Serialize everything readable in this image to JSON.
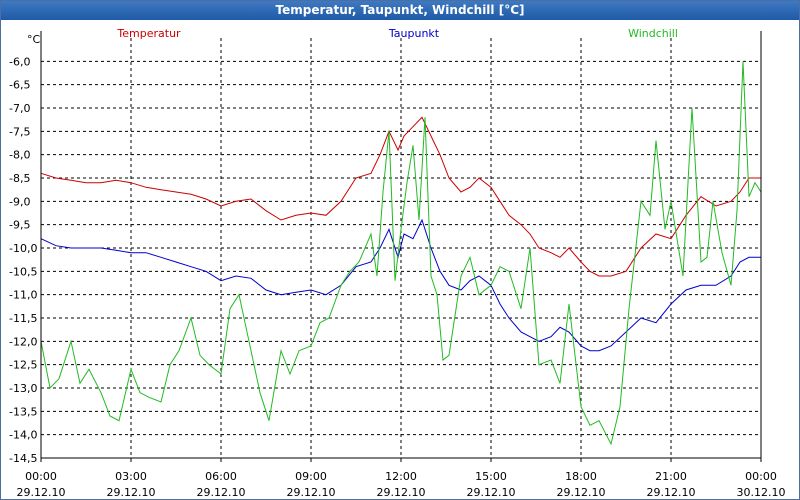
{
  "window": {
    "title": "Temperatur, Taupunkt, Windchill [°C]"
  },
  "colors": {
    "temperature": "#cc0000",
    "dewpoint": "#0000cc",
    "windchill": "#22bb22",
    "grid": "#000000",
    "axis": "#000000"
  },
  "chart_data": {
    "type": "line",
    "title": "Temperatur, Taupunkt, Windchill [°C]",
    "ylabel": "°C",
    "xlabel": "",
    "ylim": [
      -14.5,
      -5.5
    ],
    "xlim": [
      0,
      24
    ],
    "grid": true,
    "legend_position": "top",
    "yticks": [
      -14.5,
      -14.0,
      -13.5,
      -13.0,
      -12.5,
      -12.0,
      -11.5,
      -11.0,
      -10.5,
      -10.0,
      -9.5,
      -9.0,
      -8.5,
      -8.0,
      -7.5,
      -7.0,
      -6.5,
      -6.0
    ],
    "ytick_labels": [
      "-14,5",
      "-14,0",
      "-13,5",
      "-13,0",
      "-12,5",
      "-12,0",
      "-11,5",
      "-11,0",
      "-10,5",
      "-10,0",
      "-9,5",
      "-9,0",
      "-8,5",
      "-8,0",
      "-7,5",
      "-7,0",
      "-6,5",
      "-6,0"
    ],
    "xticks": [
      {
        "x": 0,
        "time": "00:00",
        "date": "29.12.10"
      },
      {
        "x": 3,
        "time": "03:00",
        "date": "29.12.10"
      },
      {
        "x": 6,
        "time": "06:00",
        "date": "29.12.10"
      },
      {
        "x": 9,
        "time": "09:00",
        "date": "29.12.10"
      },
      {
        "x": 12,
        "time": "12:00",
        "date": "29.12.10"
      },
      {
        "x": 15,
        "time": "15:00",
        "date": "29.12.10"
      },
      {
        "x": 18,
        "time": "18:00",
        "date": "29.12.10"
      },
      {
        "x": 21,
        "time": "21:00",
        "date": "29.12.10"
      },
      {
        "x": 24,
        "time": "00:00",
        "date": "30.12.10"
      }
    ],
    "series": [
      {
        "name": "Temperatur",
        "color_key": "temperature",
        "x": [
          0,
          0.5,
          1,
          1.5,
          2,
          2.5,
          3,
          3.5,
          4,
          4.5,
          5,
          5.5,
          6,
          6.5,
          7,
          7.5,
          8,
          8.5,
          9,
          9.5,
          10,
          10.5,
          11,
          11.3,
          11.6,
          11.9,
          12.1,
          12.4,
          12.7,
          13,
          13.3,
          13.6,
          14,
          14.3,
          14.6,
          15,
          15.3,
          15.6,
          16,
          16.3,
          16.6,
          17,
          17.3,
          17.6,
          18,
          18.3,
          18.6,
          19,
          19.5,
          20,
          20.5,
          21,
          21.5,
          22,
          22.5,
          23,
          23.3,
          23.6,
          24
        ],
        "values": [
          -8.4,
          -8.5,
          -8.55,
          -8.6,
          -8.6,
          -8.55,
          -8.6,
          -8.7,
          -8.75,
          -8.8,
          -8.85,
          -8.95,
          -9.1,
          -9.0,
          -8.95,
          -9.2,
          -9.4,
          -9.3,
          -9.25,
          -9.3,
          -9.0,
          -8.5,
          -8.4,
          -8.0,
          -7.5,
          -7.9,
          -7.6,
          -7.4,
          -7.2,
          -7.6,
          -8.0,
          -8.5,
          -8.8,
          -8.7,
          -8.5,
          -8.7,
          -9.0,
          -9.3,
          -9.5,
          -9.7,
          -10.0,
          -10.1,
          -10.2,
          -10.0,
          -10.3,
          -10.5,
          -10.6,
          -10.6,
          -10.5,
          -10.0,
          -9.7,
          -9.8,
          -9.3,
          -8.9,
          -9.1,
          -9.0,
          -8.8,
          -8.5,
          -8.5
        ]
      },
      {
        "name": "Taupunkt",
        "color_key": "dewpoint",
        "x": [
          0,
          0.5,
          1,
          1.5,
          2,
          2.5,
          3,
          3.5,
          4,
          4.5,
          5,
          5.5,
          6,
          6.5,
          7,
          7.5,
          8,
          8.5,
          9,
          9.5,
          10,
          10.5,
          11,
          11.3,
          11.6,
          11.9,
          12.1,
          12.4,
          12.7,
          13,
          13.3,
          13.6,
          14,
          14.3,
          14.6,
          15,
          15.3,
          15.6,
          16,
          16.3,
          16.6,
          17,
          17.3,
          17.6,
          18,
          18.3,
          18.6,
          19,
          19.5,
          20,
          20.5,
          21,
          21.5,
          22,
          22.5,
          23,
          23.3,
          23.6,
          24
        ],
        "values": [
          -9.8,
          -9.95,
          -10.0,
          -10.0,
          -10.0,
          -10.05,
          -10.1,
          -10.1,
          -10.2,
          -10.3,
          -10.4,
          -10.5,
          -10.7,
          -10.6,
          -10.65,
          -10.9,
          -11.0,
          -10.95,
          -10.9,
          -11.0,
          -10.8,
          -10.4,
          -10.3,
          -10.0,
          -9.6,
          -10.2,
          -9.7,
          -9.8,
          -9.4,
          -10.0,
          -10.5,
          -10.8,
          -10.9,
          -10.7,
          -10.6,
          -10.8,
          -11.2,
          -11.5,
          -11.8,
          -11.9,
          -12.0,
          -11.9,
          -11.7,
          -11.8,
          -12.1,
          -12.2,
          -12.2,
          -12.1,
          -11.8,
          -11.5,
          -11.6,
          -11.2,
          -10.9,
          -10.8,
          -10.8,
          -10.6,
          -10.3,
          -10.2,
          -10.2
        ]
      },
      {
        "name": "Windchill",
        "color_key": "windchill",
        "x": [
          0,
          0.3,
          0.6,
          1,
          1.3,
          1.6,
          2,
          2.3,
          2.6,
          3,
          3.3,
          3.6,
          4,
          4.3,
          4.6,
          5,
          5.3,
          5.6,
          6,
          6.3,
          6.6,
          7,
          7.3,
          7.6,
          8,
          8.3,
          8.6,
          9,
          9.3,
          9.6,
          10,
          10.3,
          10.6,
          11,
          11.2,
          11.4,
          11.6,
          11.8,
          12,
          12.2,
          12.4,
          12.6,
          12.8,
          13,
          13.2,
          13.4,
          13.6,
          14,
          14.3,
          14.6,
          15,
          15.3,
          15.6,
          16,
          16.3,
          16.6,
          17,
          17.3,
          17.6,
          18,
          18.3,
          18.6,
          19,
          19.3,
          19.6,
          20,
          20.3,
          20.5,
          20.8,
          21,
          21.2,
          21.4,
          21.7,
          22,
          22.2,
          22.4,
          22.7,
          23,
          23.2,
          23.4,
          23.6,
          23.8,
          24
        ],
        "values": [
          -12.0,
          -13.0,
          -12.8,
          -12.0,
          -12.9,
          -12.6,
          -13.1,
          -13.6,
          -13.7,
          -12.6,
          -13.1,
          -13.2,
          -13.3,
          -12.5,
          -12.2,
          -11.5,
          -12.3,
          -12.5,
          -12.7,
          -11.3,
          -11.0,
          -12.2,
          -13.1,
          -13.7,
          -12.2,
          -12.7,
          -12.2,
          -12.1,
          -11.6,
          -11.5,
          -10.8,
          -10.5,
          -10.3,
          -9.7,
          -10.6,
          -8.8,
          -7.5,
          -10.7,
          -9.6,
          -8.6,
          -7.8,
          -9.4,
          -7.2,
          -10.6,
          -11.0,
          -12.4,
          -12.3,
          -10.6,
          -10.2,
          -11.0,
          -10.8,
          -10.4,
          -10.5,
          -11.3,
          -10.0,
          -12.5,
          -12.4,
          -12.9,
          -11.2,
          -13.4,
          -13.8,
          -13.7,
          -14.2,
          -13.4,
          -11.3,
          -9.0,
          -9.3,
          -7.7,
          -9.6,
          -9.0,
          -9.8,
          -10.6,
          -7.0,
          -10.3,
          -10.2,
          -9.0,
          -10.1,
          -10.8,
          -9.2,
          -6.0,
          -8.9,
          -8.6,
          -8.8
        ]
      }
    ]
  }
}
